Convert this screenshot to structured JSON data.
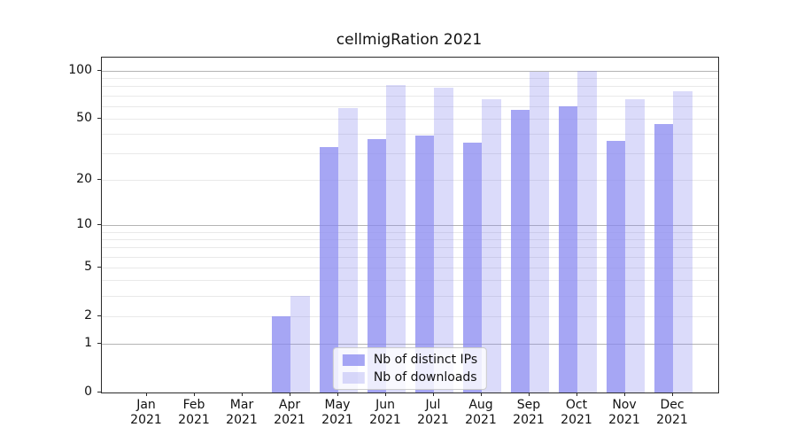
{
  "title": "cellmigRation 2021",
  "chart_data": {
    "type": "bar",
    "title": "cellmigRation 2021",
    "categories": [
      "Jan 2021",
      "Feb 2021",
      "Mar 2021",
      "Apr 2021",
      "May 2021",
      "Jun 2021",
      "Jul 2021",
      "Aug 2021",
      "Sep 2021",
      "Oct 2021",
      "Nov 2021",
      "Dec 2021"
    ],
    "series": [
      {
        "name": "Nb of distinct IPs",
        "fill": "rgba(136,136,240,0.75)",
        "values": [
          0,
          0,
          0,
          2,
          33,
          37,
          39,
          35,
          57,
          60,
          36,
          46
        ]
      },
      {
        "name": "Nb of downloads",
        "fill": "rgba(136,136,240,0.30)",
        "values": [
          0,
          0,
          0,
          3,
          58,
          81,
          78,
          66,
          98,
          100,
          66,
          74
        ]
      }
    ],
    "xlabel": "",
    "ylabel": "",
    "y_scale": "log10(value+1)",
    "ylim": [
      0,
      121
    ],
    "y_ticks": [
      0,
      1,
      2,
      5,
      10,
      20,
      50,
      100
    ],
    "y_gridlines": {
      "light": [
        2,
        3,
        4,
        5,
        6,
        7,
        8,
        9,
        20,
        30,
        40,
        50,
        60,
        70,
        80,
        90
      ],
      "dark": [
        1,
        10,
        100
      ]
    },
    "grid": "horizontal",
    "legend_position": "lower center",
    "colors": {
      "bar_base": "#8888f0",
      "gridline_light": "#e9e9e9",
      "gridline_dark": "#b4b4b4",
      "spine": "#2b2b2b"
    }
  }
}
